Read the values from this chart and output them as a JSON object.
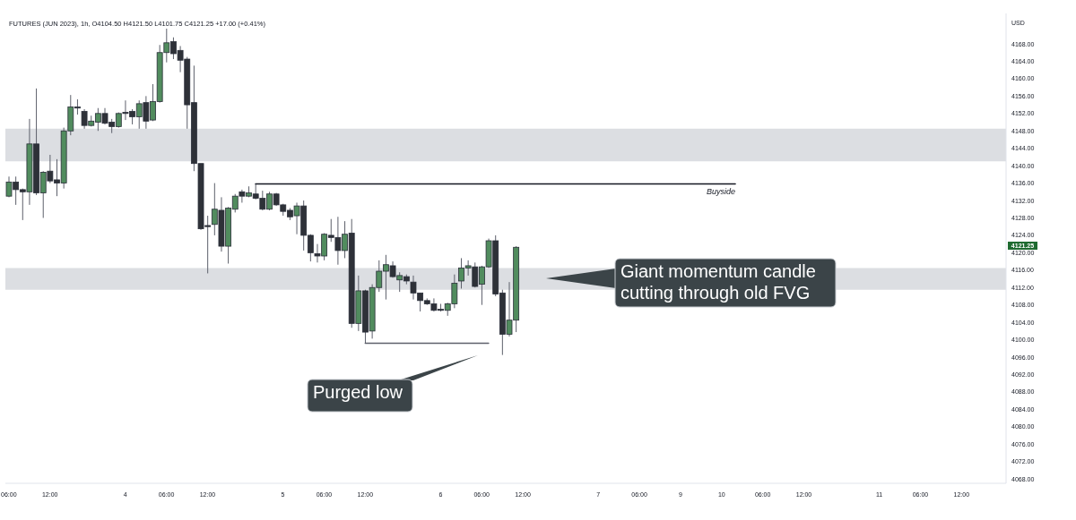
{
  "chart_data": {
    "type": "candlestick",
    "title": "FUTURES (JUN 2023), 1h, O4104.50 H4121.50 L4101.75 C4121.25 +17.00 (+0.41%)",
    "ylabel": "USD",
    "categories": [
      "06:00",
      null,
      null,
      null,
      null,
      null,
      "12:00",
      null,
      null,
      null,
      null,
      null,
      null,
      null,
      null,
      null,
      null,
      "4",
      null,
      null,
      null,
      null,
      null,
      "06:00",
      null,
      null,
      null,
      null,
      null,
      "12:00",
      null,
      null,
      null,
      null,
      null,
      null,
      null,
      null,
      null,
      null,
      "5",
      null,
      null,
      null,
      null,
      null,
      "06:00",
      null,
      null,
      null,
      null,
      null,
      "12:00",
      null,
      null,
      null,
      null,
      null,
      null,
      null,
      null,
      null,
      null,
      "6",
      null,
      null,
      null,
      null,
      null,
      "06:00",
      null,
      null,
      null,
      null,
      null,
      "12:00",
      null,
      null,
      null,
      null,
      null,
      null,
      null,
      null,
      null,
      null,
      "7",
      null,
      null,
      null,
      null,
      null,
      "06:00",
      null,
      null,
      null,
      null,
      null,
      "9",
      null,
      null,
      null,
      null,
      null,
      "10",
      null,
      null,
      null,
      null,
      null,
      "06:00",
      null,
      null,
      null,
      null,
      null,
      "12:00",
      null,
      null,
      null,
      null,
      null,
      null,
      null,
      null,
      null,
      null,
      "11",
      null,
      null,
      null,
      null,
      null,
      "06:00",
      null,
      null,
      null,
      null,
      null,
      "12:00",
      null,
      null,
      null,
      null,
      null,
      null
    ],
    "ohlc": [
      [
        4133,
        4137.5,
        4132.75,
        4136.25
      ],
      [
        4136.25,
        4137.5,
        4131,
        4134.5
      ],
      [
        4134.5,
        4134.75,
        4127.5,
        4134
      ],
      [
        4134,
        4150.75,
        4131,
        4145
      ],
      [
        4145,
        4157.75,
        4133.25,
        4133.75
      ],
      [
        4133.75,
        4138.75,
        4128,
        4138.5
      ],
      [
        4138.75,
        4142.5,
        4136,
        4136.5
      ],
      [
        4136.75,
        4141.5,
        4133,
        4136
      ],
      [
        4136,
        4148.75,
        4134.75,
        4148
      ],
      [
        4148,
        4156.25,
        4147,
        4153.5
      ],
      [
        4153.5,
        4155.25,
        4151.75,
        4153.25
      ],
      [
        4152.5,
        4153,
        4148.5,
        4149.25
      ],
      [
        4149.25,
        4151.5,
        4149,
        4150.25
      ],
      [
        4150,
        4153.25,
        4148,
        4152
      ],
      [
        4152,
        4153.25,
        4149.5,
        4149.75
      ],
      [
        4150,
        4150.75,
        4147.5,
        4149
      ],
      [
        4149,
        4152.25,
        4148.75,
        4152
      ],
      [
        4152.25,
        4155,
        4150.5,
        4152
      ],
      [
        4152.5,
        4153,
        4149.5,
        4151.25
      ],
      [
        4151.25,
        4155,
        4148.5,
        4154.25
      ],
      [
        4154.5,
        4156,
        4148.5,
        4150.25
      ],
      [
        4150.5,
        4158.75,
        4150.25,
        4154.75
      ],
      [
        4154.75,
        4167.75,
        4154.5,
        4166
      ],
      [
        4166,
        4171.5,
        4163.75,
        4168.25
      ],
      [
        4168.5,
        4169.5,
        4164.5,
        4165.75
      ],
      [
        4166.5,
        4167.5,
        4161.5,
        4164.25
      ],
      [
        4164.5,
        4165,
        4148.5,
        4154
      ],
      [
        4154.5,
        4163,
        4138.75,
        4140.5
      ],
      [
        4140.5,
        4140.5,
        4125.25,
        4125.5
      ],
      [
        4126.25,
        4128.5,
        4115.25,
        4126
      ],
      [
        4126.5,
        4136,
        4124,
        4130
      ],
      [
        4129.75,
        4132.75,
        4120.25,
        4121.5
      ],
      [
        4121.5,
        4130.5,
        4117.5,
        4130.25
      ],
      [
        4130,
        4133.5,
        4129.25,
        4133
      ],
      [
        4134,
        4134.5,
        4131.5,
        4133
      ],
      [
        4133,
        4135.25,
        4132.75,
        4133.75
      ],
      [
        4133.5,
        4135.75,
        4132.25,
        4132.5
      ],
      [
        4132.5,
        4134.25,
        4129.75,
        4130
      ],
      [
        4130,
        4134,
        4129.75,
        4133.5
      ],
      [
        4133.5,
        4133.75,
        4130.75,
        4131
      ],
      [
        4131,
        4131.25,
        4128.5,
        4129.5
      ],
      [
        4129.75,
        4130.25,
        4127.5,
        4128.25
      ],
      [
        4128.5,
        4131.5,
        4124.25,
        4130.75
      ],
      [
        4130.75,
        4132,
        4120.5,
        4124
      ],
      [
        4124,
        4124.25,
        4118,
        4120
      ],
      [
        4119.75,
        4122,
        4117.75,
        4119.25
      ],
      [
        4119.25,
        4124.5,
        4118.25,
        4124.25
      ],
      [
        4124,
        4127.75,
        4122.5,
        4123.5
      ],
      [
        4123.5,
        4128.25,
        4117.25,
        4120.5
      ],
      [
        4120.5,
        4127.25,
        4118.75,
        4124.25
      ],
      [
        4124.5,
        4127.75,
        4102.75,
        4103.75
      ],
      [
        4103.75,
        4114.75,
        4102,
        4111.25
      ],
      [
        4111.25,
        4111.5,
        4099.25,
        4101.75
      ],
      [
        4102,
        4112.75,
        4100.25,
        4112
      ],
      [
        4112,
        4118.25,
        4111,
        4115.75
      ],
      [
        4115.75,
        4119.5,
        4109.25,
        4117.25
      ],
      [
        4117,
        4118,
        4114.25,
        4114.5
      ],
      [
        4113.75,
        4115.5,
        4111,
        4114.75
      ],
      [
        4114.5,
        4115,
        4112.75,
        4113.5
      ],
      [
        4113.25,
        4114.75,
        4109.25,
        4110.75
      ],
      [
        4110.75,
        4110.75,
        4106.5,
        4109
      ],
      [
        4109,
        4109.5,
        4108,
        4108.25
      ],
      [
        4108.25,
        4109.5,
        4106.5,
        4106.75
      ],
      [
        4107,
        4108.25,
        4106.5,
        4106.75
      ],
      [
        4106.75,
        4108.5,
        4105.5,
        4108.25
      ],
      [
        4108.25,
        4115,
        4107.25,
        4113
      ],
      [
        4113.5,
        4118.75,
        4111.75,
        4116.5
      ],
      [
        4116.5,
        4118.25,
        4114.75,
        4117
      ],
      [
        4116.75,
        4117.75,
        4112,
        4112.25
      ],
      [
        4112.75,
        4117,
        4108,
        4116.75
      ],
      [
        4116.75,
        4123.25,
        4116.5,
        4122.75
      ],
      [
        4122.75,
        4124,
        4110,
        4110.5
      ],
      [
        4110.75,
        4111.5,
        4096.5,
        4101.25
      ],
      [
        4101.25,
        4113.25,
        4100.75,
        4104.5
      ],
      [
        4104.5,
        4121.5,
        4101.75,
        4121.25
      ],
      null,
      null,
      null,
      null,
      null,
      null,
      null,
      null,
      null,
      null,
      null,
      null,
      null,
      null,
      null,
      null,
      null,
      null,
      null,
      null,
      null,
      null,
      null,
      null,
      null,
      null,
      null,
      null,
      null,
      null,
      null,
      null,
      null,
      null,
      null,
      null,
      null,
      null,
      null,
      null,
      null,
      null,
      null,
      null,
      null,
      null,
      null,
      null,
      null,
      null,
      null,
      null,
      null,
      null,
      null,
      null,
      null,
      null,
      null,
      null,
      null,
      null,
      null,
      null,
      null,
      null,
      null,
      null,
      null,
      null,
      null
    ],
    "colors": [
      "#518c5e",
      "#2e3138",
      "#2e3138",
      "#518c5e",
      "#2e3138",
      "#518c5e",
      "#2e3138",
      "#2e3138",
      "#518c5e",
      "#518c5e",
      "#2e3138",
      "#2e3138",
      "#518c5e",
      "#518c5e",
      "#2e3138",
      "#2e3138",
      "#518c5e",
      "#2e3138",
      "#2e3138",
      "#518c5e",
      "#2e3138",
      "#518c5e",
      "#518c5e",
      "#518c5e",
      "#2e3138",
      "#2e3138",
      "#2e3138",
      "#2e3138",
      "#2e3138",
      "#2e3138",
      "#518c5e",
      "#2e3138",
      "#518c5e",
      "#518c5e",
      "#2e3138",
      "#518c5e",
      "#2e3138",
      "#2e3138",
      "#518c5e",
      "#2e3138",
      "#2e3138",
      "#2e3138",
      "#518c5e",
      "#2e3138",
      "#2e3138",
      "#2e3138",
      "#518c5e",
      "#2e3138",
      "#2e3138",
      "#518c5e",
      "#2e3138",
      "#518c5e",
      "#2e3138",
      "#518c5e",
      "#518c5e",
      "#518c5e",
      "#2e3138",
      "#518c5e",
      "#2e3138",
      "#2e3138",
      "#2e3138",
      "#2e3138",
      "#2e3138",
      "#2e3138",
      "#518c5e",
      "#518c5e",
      "#518c5e",
      "#518c5e",
      "#2e3138",
      "#518c5e",
      "#518c5e",
      "#2e3138",
      "#2e3138",
      "#518c5e",
      "#518c5e",
      null,
      null,
      null,
      null,
      null,
      null,
      null,
      null,
      null,
      null,
      null,
      null,
      null,
      null,
      null,
      null,
      null,
      null,
      null,
      null,
      null,
      null,
      null,
      null,
      null,
      null,
      null,
      null,
      null,
      null,
      null,
      null,
      null,
      null,
      null,
      null,
      null,
      null,
      null,
      null,
      null,
      null,
      null,
      null,
      null,
      null,
      null,
      null,
      null,
      null,
      null,
      null,
      null,
      null,
      null,
      null,
      null,
      null,
      null,
      null,
      null,
      null,
      null,
      null,
      null,
      null,
      null,
      null,
      null,
      null,
      null
    ],
    "series": [
      {
        "type": "line",
        "name": "Buyside",
        "color": "#131722",
        "values": [
          null,
          null,
          null,
          null,
          null,
          null,
          null,
          null,
          null,
          null,
          null,
          null,
          null,
          null,
          null,
          null,
          null,
          null,
          null,
          null,
          null,
          null,
          null,
          null,
          null,
          null,
          null,
          null,
          null,
          null,
          null,
          null,
          null,
          null,
          null,
          null,
          4135.8,
          4135.8,
          4135.8,
          4135.8,
          4135.8,
          4135.8,
          4135.8,
          4135.8,
          4135.8,
          4135.8,
          4135.8,
          4135.8,
          4135.8,
          4135.8,
          4135.8,
          4135.8,
          4135.8,
          4135.8,
          4135.8,
          4135.8,
          4135.8,
          4135.8,
          4135.8,
          4135.8,
          4135.8,
          4135.8,
          4135.8,
          4135.8,
          4135.8,
          4135.8,
          4135.8,
          4135.8,
          4135.8,
          4135.8,
          4135.8,
          4135.8,
          4135.8,
          4135.8,
          4135.8,
          4135.8,
          4135.8,
          4135.8,
          4135.8,
          4135.8,
          4135.8,
          4135.8,
          4135.8,
          4135.8,
          4135.8,
          4135.8,
          4135.8,
          4135.8,
          4135.8,
          4135.8,
          4135.8,
          4135.8,
          4135.8,
          4135.8,
          4135.8,
          4135.8,
          4135.8,
          4135.8,
          4135.8,
          4135.8,
          4135.8,
          4135.8,
          4135.8,
          4135.8,
          4135.8,
          4135.8,
          4135.8,
          null,
          null,
          null,
          null,
          null,
          null,
          null,
          null,
          null,
          null,
          null,
          null,
          null,
          null,
          null,
          null,
          null,
          null,
          null,
          null,
          null,
          null,
          null,
          null,
          null,
          null,
          null,
          null,
          null,
          null,
          null,
          null,
          null,
          null,
          null,
          null,
          null,
          null,
          null
        ]
      },
      {
        "type": "line",
        "color": "#5d606b",
        "values": [
          null,
          null,
          null,
          null,
          null,
          null,
          null,
          null,
          null,
          null,
          null,
          null,
          null,
          null,
          null,
          null,
          null,
          null,
          null,
          null,
          null,
          null,
          null,
          null,
          null,
          null,
          null,
          null,
          null,
          null,
          null,
          null,
          null,
          null,
          null,
          null,
          null,
          null,
          null,
          null,
          null,
          null,
          null,
          null,
          null,
          null,
          null,
          null,
          null,
          null,
          null,
          null,
          4099.2,
          4099.2,
          4099.2,
          4099.2,
          4099.2,
          4099.2,
          4099.2,
          4099.2,
          4099.2,
          4099.2,
          4099.2,
          4099.2,
          4099.2,
          4099.2,
          4099.2,
          4099.2,
          4099.2,
          4099.2,
          4099.2,
          null,
          null,
          null,
          null,
          null,
          null,
          null,
          null,
          null,
          null,
          null,
          null,
          null,
          null,
          null,
          null,
          null,
          null,
          null,
          null,
          null,
          null,
          null,
          null,
          null,
          null,
          null,
          null,
          null,
          null,
          null,
          null,
          null,
          null,
          null,
          null,
          null,
          null,
          null,
          null,
          null,
          null,
          null,
          null,
          null,
          null,
          null,
          null,
          null,
          null,
          null,
          null,
          null,
          null,
          null,
          null,
          null,
          null,
          null,
          null,
          null,
          null,
          null,
          null,
          null,
          null,
          null,
          null,
          null,
          null,
          null,
          null,
          null,
          null,
          null
        ]
      }
    ],
    "bands": [
      {
        "axis": "y",
        "from": 4141,
        "to": 4148.5,
        "color": "#dcdee2"
      },
      {
        "axis": "y",
        "from": 4111.5,
        "to": 4116.5,
        "color": "#dcdee2"
      }
    ],
    "ylim": [
      4067,
      4175
    ],
    "yticks": [
      {
        "value": 4068,
        "label": "4068.00"
      },
      {
        "value": 4072,
        "label": "4072.00"
      },
      {
        "value": 4076,
        "label": "4076.00"
      },
      {
        "value": 4080,
        "label": "4080.00"
      },
      {
        "value": 4084,
        "label": "4084.00"
      },
      {
        "value": 4088,
        "label": "4088.00"
      },
      {
        "value": 4092,
        "label": "4092.00"
      },
      {
        "value": 4096,
        "label": "4096.00"
      },
      {
        "value": 4100,
        "label": "4100.00"
      },
      {
        "value": 4104,
        "label": "4104.00"
      },
      {
        "value": 4108,
        "label": "4108.00"
      },
      {
        "value": 4112,
        "label": "4112.00"
      },
      {
        "value": 4116,
        "label": "4116.00"
      },
      {
        "value": 4120,
        "label": "4120.00"
      },
      {
        "value": 4124,
        "label": "4124.00"
      },
      {
        "value": 4128,
        "label": "4128.00"
      },
      {
        "value": 4132,
        "label": "4132.00"
      },
      {
        "value": 4136,
        "label": "4136.00"
      },
      {
        "value": 4140,
        "label": "4140.00"
      },
      {
        "value": 4144,
        "label": "4144.00"
      },
      {
        "value": 4148,
        "label": "4148.00"
      },
      {
        "value": 4152,
        "label": "4152.00"
      },
      {
        "value": 4156,
        "label": "4156.00"
      },
      {
        "value": 4160,
        "label": "4160.00"
      },
      {
        "value": 4164,
        "label": "4164.00"
      },
      {
        "value": 4168,
        "label": "4168.00"
      }
    ],
    "annotations": [
      "Giant momentum candle cutting through old FVG",
      "Purged low",
      "4121.25"
    ]
  }
}
